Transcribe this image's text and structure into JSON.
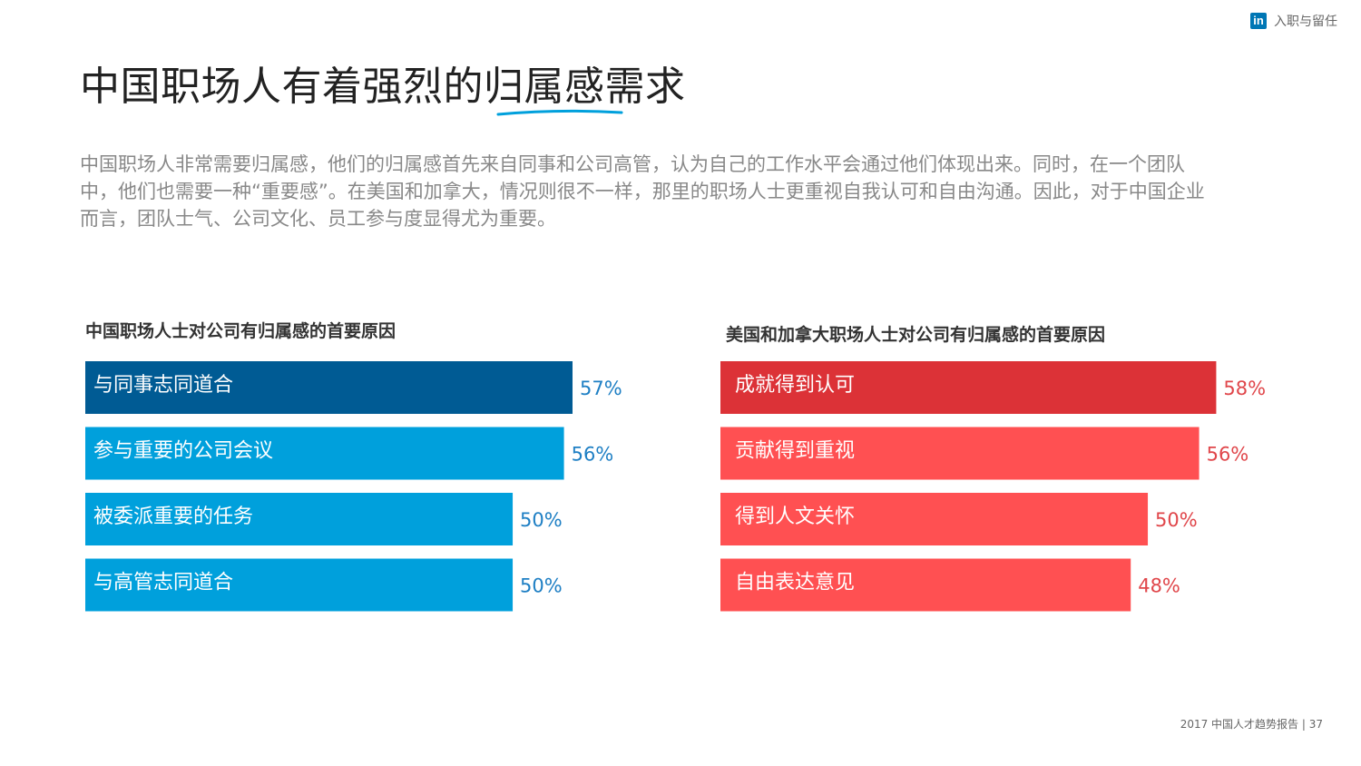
{
  "header": {
    "logo_text": "in",
    "section": "入职与留任"
  },
  "page": {
    "title": "中国职场人有着强烈的归属感需求",
    "intro": "中国职场人非常需要归属感，他们的归属感首先来自同事和公司高管，认为自己的工作水平会通过他们体现出来。同时，在一个团队中，他们也需要一种“重要感”。在美国和加拿大，情况则很不一样，那里的职场人士更重视自我认可和自由沟通。因此，对于中国企业而言，团队士气、公司文化、员工参与度显得尤为重要。"
  },
  "colors": {
    "china_primary": "#005b94",
    "china_bar": "#00a0dc",
    "china_label": "#1e7fc4",
    "na_primary": "#dc3237",
    "na_bar": "#ff5052",
    "na_label": "#e0464a"
  },
  "chart_data": [
    {
      "type": "bar",
      "orientation": "horizontal",
      "title": "中国职场人士对公司有归属感的首要原因",
      "categories": [
        "与同事志同道合",
        "参与重要的公司会议",
        "被委派重要的任务",
        "与高管志同道合"
      ],
      "values": [
        57,
        56,
        50,
        50
      ],
      "value_labels": [
        "57%",
        "56%",
        "50%",
        "50%"
      ],
      "unit": "%",
      "xlim": [
        0,
        100
      ]
    },
    {
      "type": "bar",
      "orientation": "horizontal",
      "title": "美国和加拿大职场人士对公司有归属感的首要原因",
      "categories": [
        "成就得到认可",
        "贡献得到重视",
        "得到人文关怀",
        "自由表达意见"
      ],
      "values": [
        58,
        56,
        50,
        48
      ],
      "value_labels": [
        "58%",
        "56%",
        "50%",
        "48%"
      ],
      "unit": "%",
      "xlim": [
        0,
        100
      ]
    }
  ],
  "footer": {
    "text": "2017 中国人才趋势报告 | 37"
  }
}
